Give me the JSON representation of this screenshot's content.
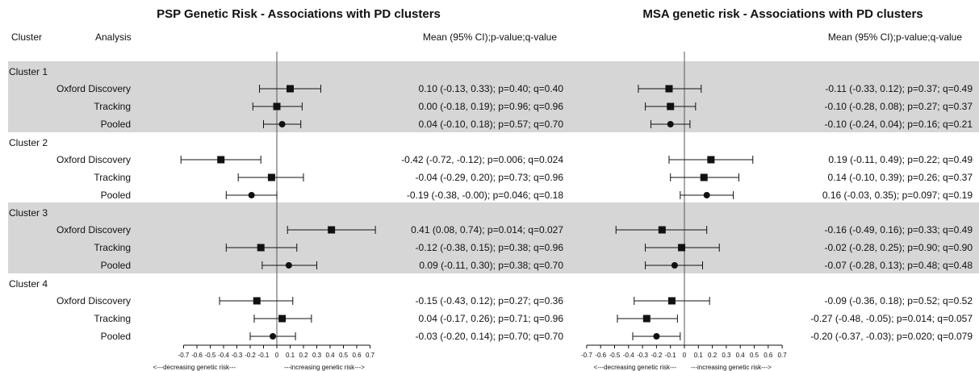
{
  "header": {
    "cluster": "Cluster",
    "analysis": "Analysis",
    "stat": "Mean (95% CI);p-value;q-value"
  },
  "panels": [
    {
      "title": "PSP Genetic Risk - Associations with PD clusters",
      "direction_left": "<---decreasing genetic risk---",
      "direction_right": "---increasing genetic risk--->"
    },
    {
      "title": "MSA genetic risk - Associations with PD clusters",
      "direction_left": "<---decreasing genetic risk---",
      "direction_right": "---increasing genetic risk--->"
    }
  ],
  "chart_data": [
    {
      "type": "forest",
      "title": "PSP Genetic Risk - Associations with PD clusters",
      "xlim": [
        -0.7,
        0.7
      ],
      "ticks": [
        "-0.7",
        "-0.6",
        "-0.5",
        "-0.4",
        "-0.3",
        "-0.2",
        "-0.1",
        "0",
        "0.1",
        "0.2",
        "0.3",
        "0.4",
        "0.5",
        "0.6",
        "0.7"
      ],
      "clusters": [
        {
          "label": "Cluster 1",
          "shaded": true,
          "rows": [
            {
              "analysis": "Oxford Discovery",
              "mean": 0.1,
              "lo": -0.13,
              "hi": 0.33,
              "marker": "square",
              "text": "0.10 (-0.13, 0.33); p=0.40; q=0.40"
            },
            {
              "analysis": "Tracking",
              "mean": 0.0,
              "lo": -0.18,
              "hi": 0.19,
              "marker": "square",
              "text": "0.00 (-0.18, 0.19); p=0.96; q=0.96"
            },
            {
              "analysis": "Pooled",
              "mean": 0.04,
              "lo": -0.1,
              "hi": 0.18,
              "marker": "circle",
              "text": "0.04 (-0.10, 0.18); p=0.57; q=0.70"
            }
          ]
        },
        {
          "label": "Cluster 2",
          "shaded": false,
          "rows": [
            {
              "analysis": "Oxford Discovery",
              "mean": -0.42,
              "lo": -0.72,
              "hi": -0.12,
              "marker": "square",
              "text": "-0.42 (-0.72, -0.12); p=0.006; q=0.024"
            },
            {
              "analysis": "Tracking",
              "mean": -0.04,
              "lo": -0.29,
              "hi": 0.2,
              "marker": "square",
              "text": "-0.04 (-0.29, 0.20); p=0.73; q=0.96"
            },
            {
              "analysis": "Pooled",
              "mean": -0.19,
              "lo": -0.38,
              "hi": -0.0,
              "marker": "circle",
              "text": "-0.19 (-0.38, -0.00); p=0.046; q=0.18"
            }
          ]
        },
        {
          "label": "Cluster 3",
          "shaded": true,
          "rows": [
            {
              "analysis": "Oxford Discovery",
              "mean": 0.41,
              "lo": 0.08,
              "hi": 0.74,
              "marker": "square",
              "text": "0.41 (0.08, 0.74); p=0.014; q=0.027"
            },
            {
              "analysis": "Tracking",
              "mean": -0.12,
              "lo": -0.38,
              "hi": 0.15,
              "marker": "square",
              "text": "-0.12 (-0.38, 0.15); p=0.38; q=0.96"
            },
            {
              "analysis": "Pooled",
              "mean": 0.09,
              "lo": -0.11,
              "hi": 0.3,
              "marker": "circle",
              "text": "0.09 (-0.11, 0.30); p=0.38; q=0.70"
            }
          ]
        },
        {
          "label": "Cluster 4",
          "shaded": false,
          "rows": [
            {
              "analysis": "Oxford Discovery",
              "mean": -0.15,
              "lo": -0.43,
              "hi": 0.12,
              "marker": "square",
              "text": "-0.15 (-0.43, 0.12); p=0.27; q=0.36"
            },
            {
              "analysis": "Tracking",
              "mean": 0.04,
              "lo": -0.17,
              "hi": 0.26,
              "marker": "square",
              "text": "0.04 (-0.17, 0.26); p=0.71; q=0.96"
            },
            {
              "analysis": "Pooled",
              "mean": -0.03,
              "lo": -0.2,
              "hi": 0.14,
              "marker": "circle",
              "text": "-0.03 (-0.20, 0.14); p=0.70; q=0.70"
            }
          ]
        }
      ]
    },
    {
      "type": "forest",
      "title": "MSA genetic risk - Associations with PD clusters",
      "xlim": [
        -0.7,
        0.7
      ],
      "ticks": [
        "-0.7",
        "-0.6",
        "-0.5",
        "-0.4",
        "-0.3",
        "-0.2",
        "-0.1",
        "0",
        "0.1",
        "0.2",
        "0.3",
        "0.4",
        "0.5",
        "0.6",
        "0.7"
      ],
      "clusters": [
        {
          "label": "Cluster 1",
          "shaded": true,
          "rows": [
            {
              "analysis": "Oxford Discovery",
              "mean": -0.11,
              "lo": -0.33,
              "hi": 0.12,
              "marker": "square",
              "text": "-0.11 (-0.33, 0.12); p=0.37; q=0.49"
            },
            {
              "analysis": "Tracking",
              "mean": -0.1,
              "lo": -0.28,
              "hi": 0.08,
              "marker": "square",
              "text": "-0.10 (-0.28, 0.08); p=0.27; q=0.37"
            },
            {
              "analysis": "Pooled",
              "mean": -0.1,
              "lo": -0.24,
              "hi": 0.04,
              "marker": "circle",
              "text": "-0.10 (-0.24, 0.04); p=0.16; q=0.21"
            }
          ]
        },
        {
          "label": "Cluster 2",
          "shaded": false,
          "rows": [
            {
              "analysis": "Oxford Discovery",
              "mean": 0.19,
              "lo": -0.11,
              "hi": 0.49,
              "marker": "square",
              "text": "0.19 (-0.11, 0.49); p=0.22; q=0.49"
            },
            {
              "analysis": "Tracking",
              "mean": 0.14,
              "lo": -0.1,
              "hi": 0.39,
              "marker": "square",
              "text": "0.14 (-0.10, 0.39); p=0.26; q=0.37"
            },
            {
              "analysis": "Pooled",
              "mean": 0.16,
              "lo": -0.03,
              "hi": 0.35,
              "marker": "circle",
              "text": "0.16 (-0.03, 0.35); p=0.097; q=0.19"
            }
          ]
        },
        {
          "label": "Cluster 3",
          "shaded": true,
          "rows": [
            {
              "analysis": "Oxford Discovery",
              "mean": -0.16,
              "lo": -0.49,
              "hi": 0.16,
              "marker": "square",
              "text": "-0.16 (-0.49, 0.16); p=0.33; q=0.49"
            },
            {
              "analysis": "Tracking",
              "mean": -0.02,
              "lo": -0.28,
              "hi": 0.25,
              "marker": "square",
              "text": "-0.02 (-0.28, 0.25); p=0.90; q=0.90"
            },
            {
              "analysis": "Pooled",
              "mean": -0.07,
              "lo": -0.28,
              "hi": 0.13,
              "marker": "circle",
              "text": "-0.07 (-0.28, 0.13); p=0.48; q=0.48"
            }
          ]
        },
        {
          "label": "Cluster 4",
          "shaded": false,
          "rows": [
            {
              "analysis": "Oxford Discovery",
              "mean": -0.09,
              "lo": -0.36,
              "hi": 0.18,
              "marker": "square",
              "text": "-0.09 (-0.36, 0.18); p=0.52; q=0.52"
            },
            {
              "analysis": "Tracking",
              "mean": -0.27,
              "lo": -0.48,
              "hi": -0.05,
              "marker": "square",
              "text": "-0.27 (-0.48, -0.05); p=0.014; q=0.057"
            },
            {
              "analysis": "Pooled",
              "mean": -0.2,
              "lo": -0.37,
              "hi": -0.03,
              "marker": "circle",
              "text": "-0.20 (-0.37, -0.03); p=0.020; q=0.079"
            }
          ]
        }
      ]
    }
  ],
  "colors": {
    "shade": "#d6d6d6",
    "ink": "#111111",
    "refline": "#555555"
  }
}
